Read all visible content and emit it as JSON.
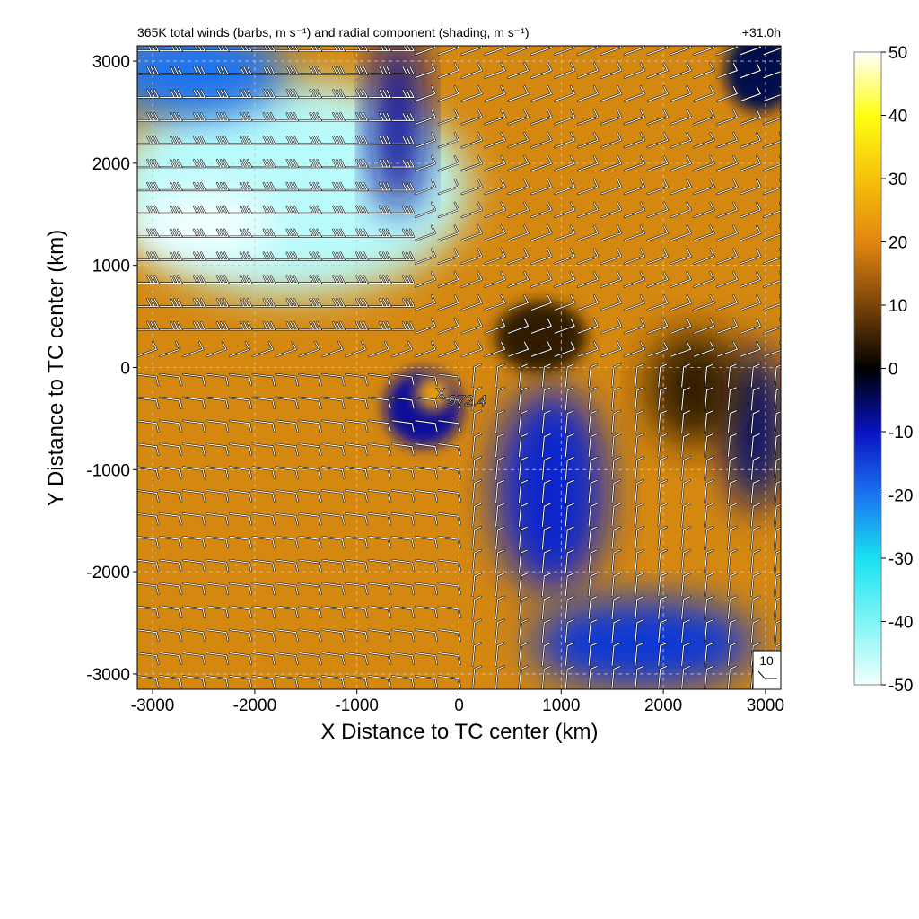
{
  "chart_data": {
    "type": "heatmap",
    "title": "365K total winds (barbs, m s⁻¹) and radial component (shading, m s⁻¹)",
    "forecast_hour": "+31.0h",
    "xlabel": "X Distance to TC center (km)",
    "ylabel": "Y Distance to TC center (km)",
    "xlim": [
      -3150,
      3150
    ],
    "ylim": [
      -3150,
      3150
    ],
    "x_ticks": [
      -3000,
      -2000,
      -1000,
      0,
      1000,
      2000,
      3000
    ],
    "y_ticks": [
      -3000,
      -2000,
      -1000,
      0,
      1000,
      2000,
      3000
    ],
    "grid": true,
    "center_marker": "X",
    "center_pressure": "972.4",
    "barb_reference": "10",
    "colorbar": {
      "min": -50,
      "max": 50,
      "ticks": [
        50,
        40,
        30,
        20,
        10,
        0,
        -10,
        -20,
        -30,
        -40,
        -50
      ],
      "colors": [
        {
          "v": -50,
          "c": "#f2ffff"
        },
        {
          "v": -40,
          "c": "#7ff5f5"
        },
        {
          "v": -30,
          "c": "#18e1f2"
        },
        {
          "v": -20,
          "c": "#1b74f2"
        },
        {
          "v": -10,
          "c": "#0912c2"
        },
        {
          "v": 0,
          "c": "#000000"
        },
        {
          "v": 10,
          "c": "#7a4408"
        },
        {
          "v": 20,
          "c": "#e3860f"
        },
        {
          "v": 30,
          "c": "#f5c20a"
        },
        {
          "v": 40,
          "c": "#ffff10"
        },
        {
          "v": 50,
          "c": "#ffffff"
        }
      ]
    },
    "field_features": [
      {
        "x": -1650,
        "y": 1750,
        "rx": 1750,
        "ry": 1050,
        "value": -45
      },
      {
        "x": -2500,
        "y": 1400,
        "rx": 700,
        "ry": 350,
        "value": -50
      },
      {
        "x": -2600,
        "y": 2900,
        "rx": 900,
        "ry": 450,
        "value": -20
      },
      {
        "x": -600,
        "y": 2400,
        "rx": 260,
        "ry": 900,
        "value": -8
      },
      {
        "x": 900,
        "y": -1200,
        "rx": 550,
        "ry": 1000,
        "value": -12
      },
      {
        "x": 1800,
        "y": -2700,
        "rx": 1100,
        "ry": 450,
        "value": -14
      },
      {
        "x": 2900,
        "y": -600,
        "rx": 300,
        "ry": 800,
        "value": -6
      },
      {
        "x": 2950,
        "y": 2900,
        "rx": 350,
        "ry": 400,
        "value": -4
      },
      {
        "x": 800,
        "y": 300,
        "rx": 450,
        "ry": 350,
        "value": 4
      },
      {
        "x": 2300,
        "y": -200,
        "rx": 450,
        "ry": 550,
        "value": 4
      },
      {
        "x": -350,
        "y": -400,
        "rx": 380,
        "ry": 380,
        "value": -8
      },
      {
        "x": -250,
        "y": -250,
        "rx": 170,
        "ry": 170,
        "value": 24
      }
    ]
  }
}
